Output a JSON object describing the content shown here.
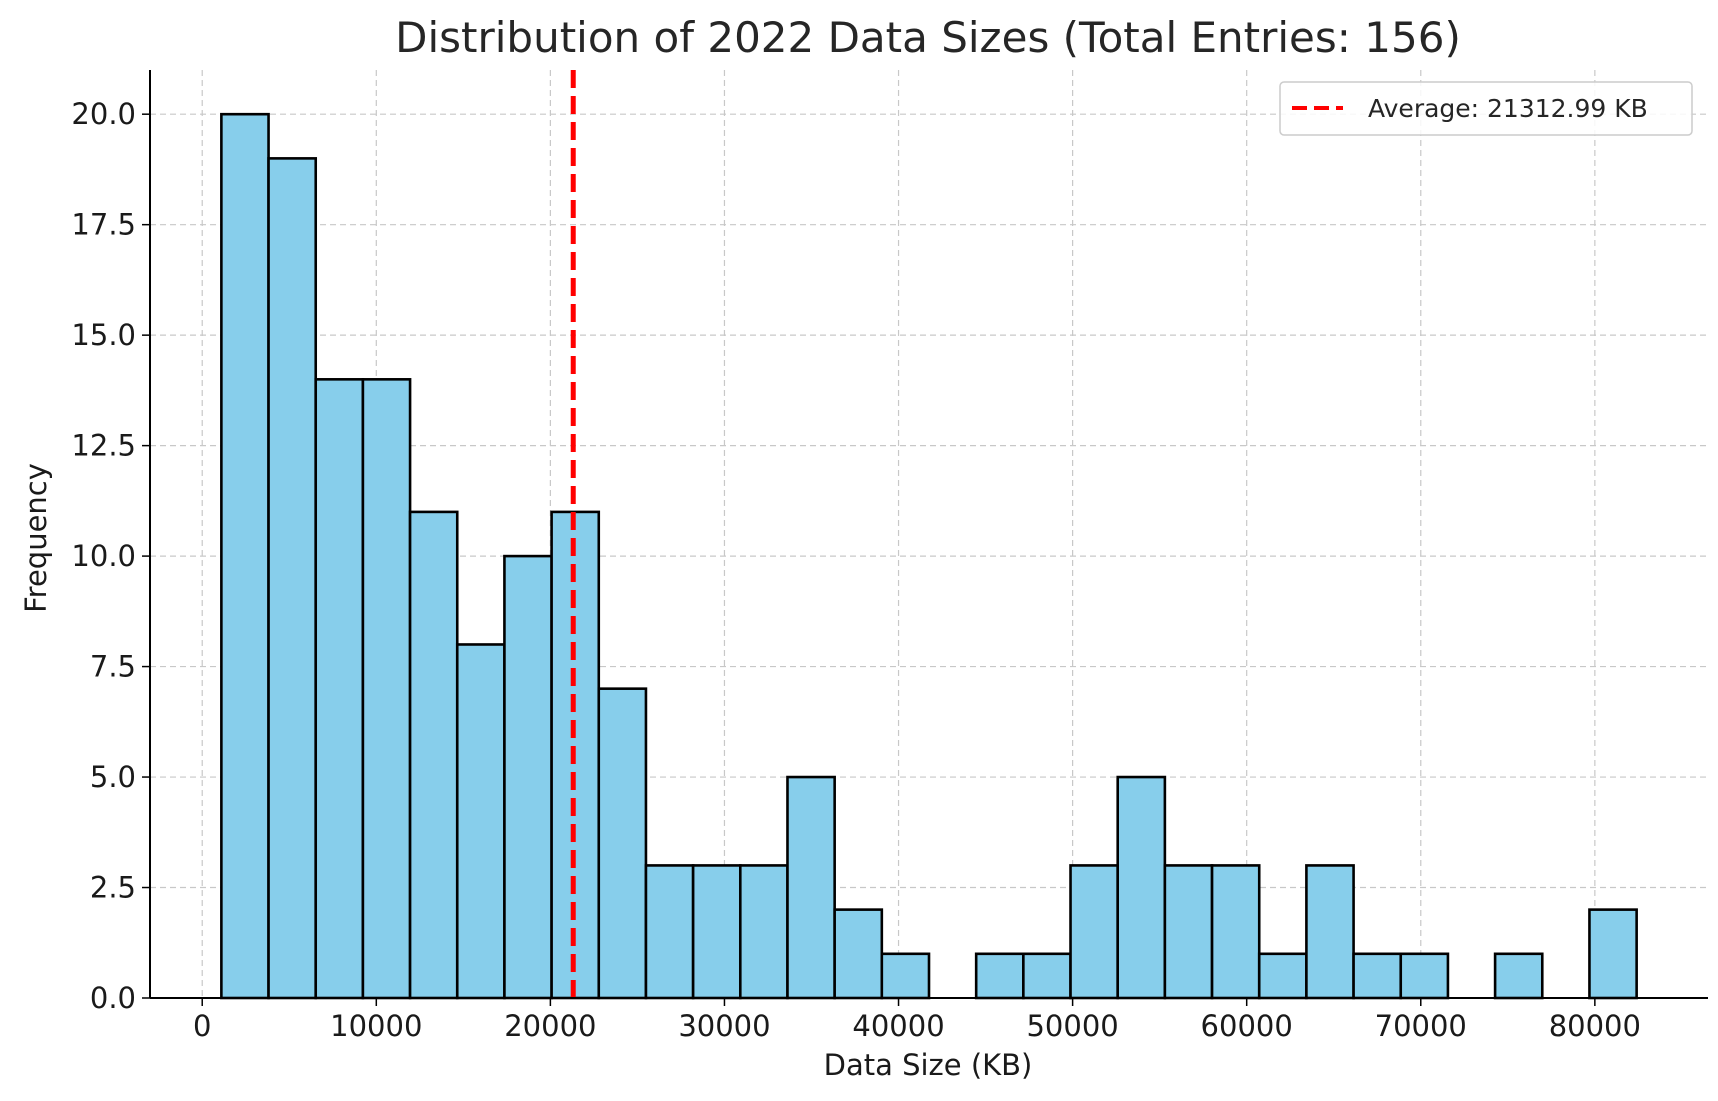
{
  "chart_data": {
    "type": "bar",
    "title": "Distribution of 2022 Data Sizes (Total Entries: 156)",
    "xlabel": "Data Size (KB)",
    "ylabel": "Frequency",
    "xlim": [
      -3000,
      86500
    ],
    "ylim": [
      0,
      21
    ],
    "x_ticks": [
      0,
      10000,
      20000,
      30000,
      40000,
      50000,
      60000,
      70000,
      80000
    ],
    "y_ticks": [
      0.0,
      2.5,
      5.0,
      7.5,
      10.0,
      12.5,
      15.0,
      17.5,
      20.0
    ],
    "x_tick_labels": [
      "0",
      "10000",
      "20000",
      "30000",
      "40000",
      "50000",
      "60000",
      "70000",
      "80000"
    ],
    "y_tick_labels": [
      "0.0",
      "2.5",
      "5.0",
      "7.5",
      "10.0",
      "12.5",
      "15.0",
      "17.5",
      "20.0"
    ],
    "bin_start": 1100,
    "bin_width": 2710,
    "values": [
      20,
      19,
      14,
      14,
      11,
      8,
      10,
      11,
      7,
      3,
      3,
      3,
      5,
      2,
      1,
      0,
      1,
      1,
      3,
      5,
      3,
      3,
      1,
      3,
      1,
      1,
      0,
      1,
      0,
      2
    ],
    "bar_color": "#87CEEB",
    "bar_edge_color": "#000000",
    "average_line": {
      "value": 21312.99,
      "label": "Average: 21312.99 KB",
      "color": "#ff0000"
    },
    "grid": true,
    "legend_position": "top-right"
  }
}
